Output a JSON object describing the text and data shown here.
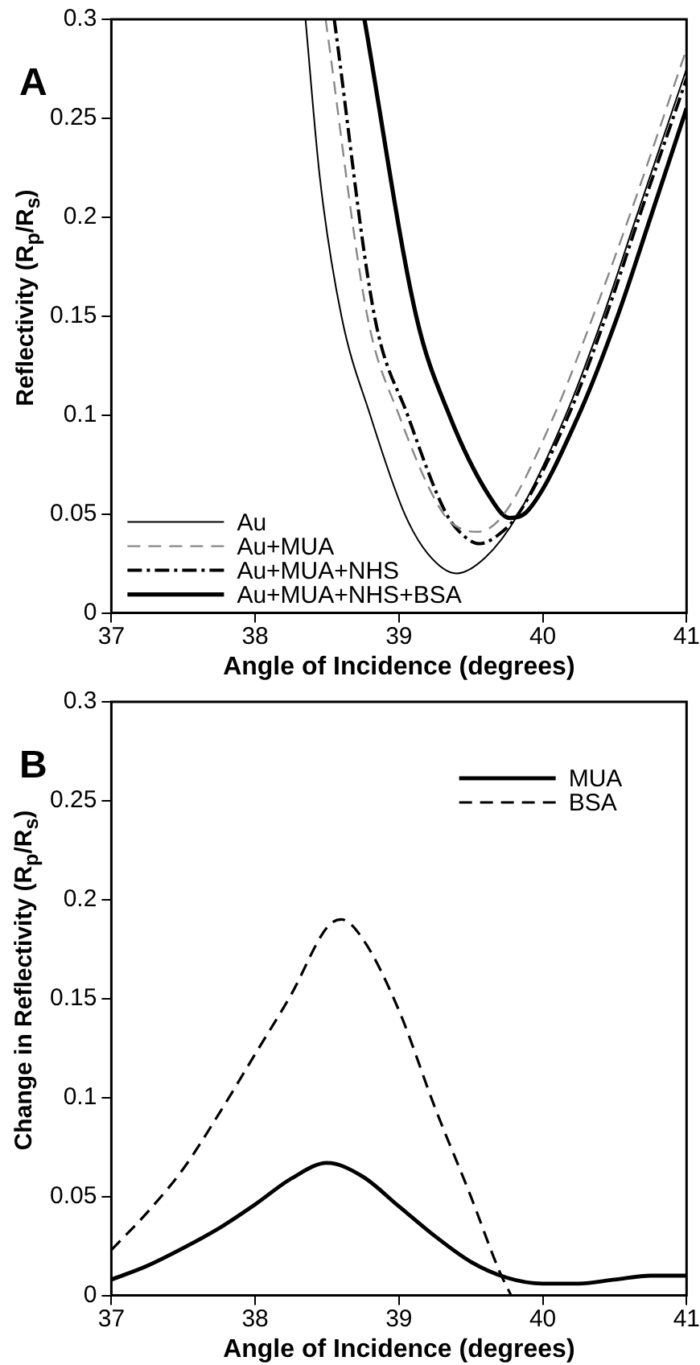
{
  "chart_data": [
    {
      "type": "line",
      "annotations": [
        "A"
      ],
      "xlabel": "Angle of Incidence (degrees)",
      "ylabel": "Reflectivity (R$_{p}$/R$_{s}$)",
      "xlim": [
        37,
        41
      ],
      "xticks": [
        37,
        38,
        39,
        40,
        41
      ],
      "ylim": [
        0,
        0.3
      ],
      "yticks": [
        0,
        0.05,
        0.1,
        0.15,
        0.2,
        0.25,
        0.3
      ],
      "grid": false,
      "legend": "bottom left",
      "marker": "none",
      "series": [
        {
          "name": "Au",
          "color": "#000000",
          "line_style": "solid",
          "x": [
            38.35,
            38.45,
            38.6,
            38.8,
            39.04,
            39.2,
            39.4,
            39.6,
            39.83,
            40.16,
            40.42,
            40.65,
            41
          ],
          "values": [
            0.3,
            0.22,
            0.15,
            0.1,
            0.05,
            0.03,
            0.02,
            0.028,
            0.05,
            0.1,
            0.15,
            0.2,
            0.275
          ]
        },
        {
          "name": "Au+MUA",
          "color": "#888888",
          "line_style": "dashed",
          "x": [
            38.49,
            38.78,
            39.0,
            39.31,
            39.45,
            39.55,
            39.73,
            40.08,
            40.35,
            40.6,
            41
          ],
          "values": [
            0.3,
            0.15,
            0.1,
            0.05,
            0.042,
            0.041,
            0.05,
            0.1,
            0.15,
            0.2,
            0.285
          ]
        },
        {
          "name": "Au+MUA+NHS",
          "color": "#000000",
          "line_style": "dashdot",
          "x": [
            38.55,
            38.83,
            39.06,
            39.33,
            39.45,
            39.56,
            39.7,
            39.83,
            40.18,
            40.44,
            40.67,
            41
          ],
          "values": [
            0.3,
            0.15,
            0.1,
            0.05,
            0.039,
            0.035,
            0.04,
            0.05,
            0.1,
            0.15,
            0.2,
            0.27
          ]
        },
        {
          "name": "Au+MUA+NHS+BSA",
          "color": "#000000",
          "line_style": "solid",
          "x": [
            38.76,
            39.12,
            39.35,
            39.62,
            39.77,
            39.9,
            40.25,
            40.52,
            40.75,
            41
          ],
          "values": [
            0.3,
            0.15,
            0.1,
            0.06,
            0.048,
            0.052,
            0.1,
            0.15,
            0.2,
            0.255
          ]
        }
      ]
    },
    {
      "type": "line",
      "annotations": [
        "B"
      ],
      "xlabel": "Angle of Incidence (degrees)",
      "ylabel": "Change in Reflectivity (R$_{p}$/R$_{s}$)",
      "xlim": [
        37,
        41
      ],
      "xticks": [
        37,
        38,
        39,
        40,
        41
      ],
      "ylim": [
        0,
        0.3
      ],
      "yticks": [
        0,
        0.05,
        0.1,
        0.15,
        0.2,
        0.25,
        0.3
      ],
      "grid": false,
      "legend": "top right",
      "marker": "none",
      "series": [
        {
          "name": "MUA",
          "color": "#000000",
          "line_style": "solid",
          "x": [
            37,
            37.25,
            37.5,
            37.75,
            38,
            38.25,
            38.5,
            38.75,
            39,
            39.25,
            39.5,
            39.75,
            40,
            40.25,
            40.5,
            40.75,
            41
          ],
          "values": [
            0.008,
            0.015,
            0.024,
            0.034,
            0.046,
            0.059,
            0.067,
            0.06,
            0.045,
            0.03,
            0.017,
            0.009,
            0.006,
            0.006,
            0.008,
            0.01,
            0.01
          ]
        },
        {
          "name": "BSA",
          "color": "#000000",
          "line_style": "dashed",
          "x": [
            37,
            37.25,
            37.5,
            37.75,
            38,
            38.25,
            38.5,
            38.6,
            38.75,
            39,
            39.25,
            39.5,
            39.7,
            39.78
          ],
          "values": [
            0.023,
            0.042,
            0.064,
            0.092,
            0.122,
            0.152,
            0.186,
            0.19,
            0.18,
            0.144,
            0.095,
            0.05,
            0.012,
            0
          ]
        }
      ]
    }
  ]
}
